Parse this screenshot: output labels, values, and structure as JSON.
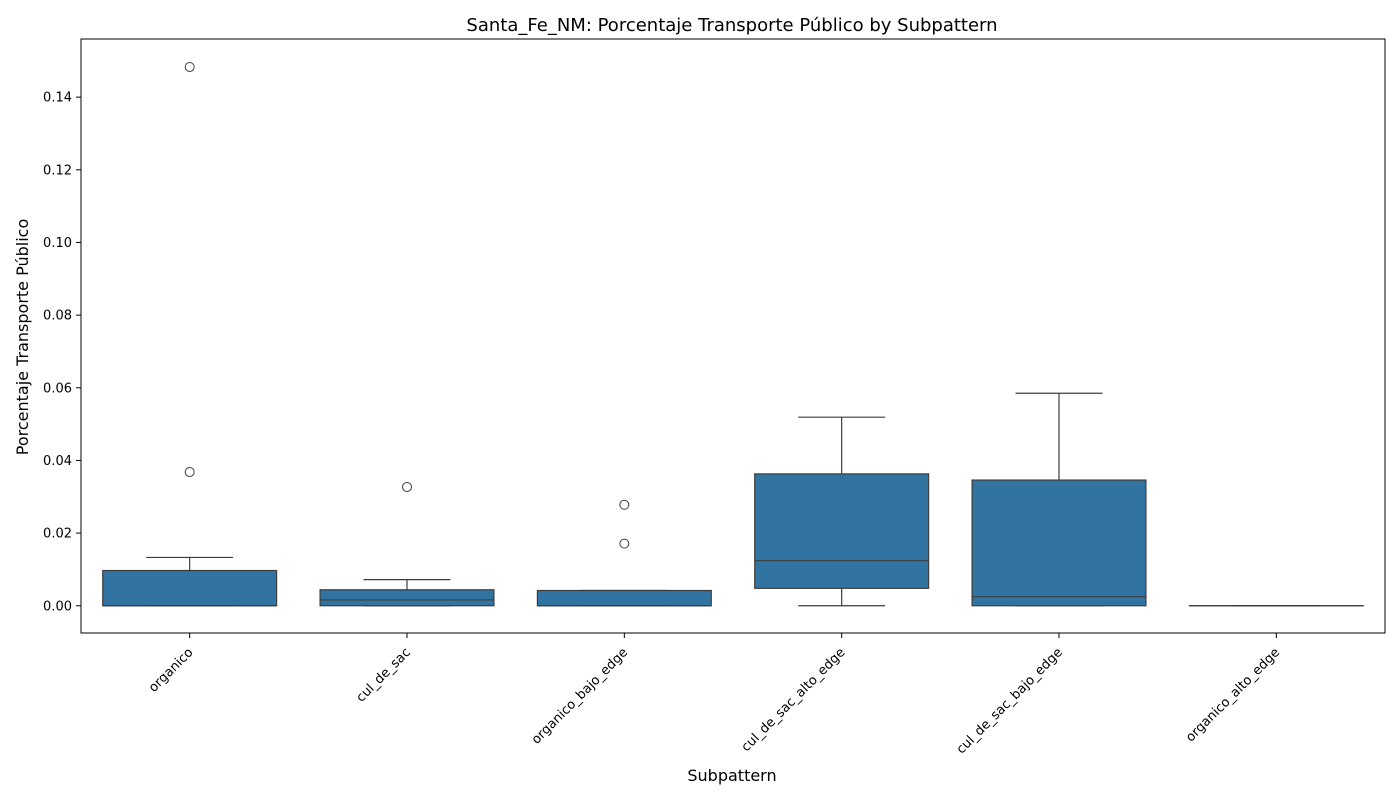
{
  "chart_data": {
    "type": "box",
    "title": "Santa_Fe_NM: Porcentaje Transporte Público by Subpattern",
    "xlabel": "Subpattern",
    "ylabel": "Porcentaje Transporte Público",
    "ylim": [
      -0.0075,
      0.156
    ],
    "yticks": [
      0.0,
      0.02,
      0.04,
      0.06,
      0.08,
      0.1,
      0.12,
      0.14
    ],
    "ytick_labels": [
      "0.00",
      "0.02",
      "0.04",
      "0.06",
      "0.08",
      "0.10",
      "0.12",
      "0.14"
    ],
    "grid": false,
    "box_color": "#3274a1",
    "line_color": "#3d3d3d",
    "categories": [
      "organico",
      "cul_de_sac",
      "organico_bajo_edge",
      "cul_de_sac_alto_edge",
      "cul_de_sac_bajo_edge",
      "organico_alto_edge"
    ],
    "boxes": [
      {
        "category": "organico",
        "whislo": 0.0,
        "q1": 0.0,
        "med": 0.0,
        "q3": 0.0097,
        "whishi": 0.0133,
        "fliers": [
          0.0368,
          0.1483
        ]
      },
      {
        "category": "cul_de_sac",
        "whislo": 0.0,
        "q1": 0.0,
        "med": 0.0016,
        "q3": 0.0044,
        "whishi": 0.0072,
        "fliers": [
          0.0327
        ]
      },
      {
        "category": "organico_bajo_edge",
        "whislo": 0.0,
        "q1": 0.0,
        "med": 0.0,
        "q3": 0.0042,
        "whishi": 0.0042,
        "fliers": [
          0.0171,
          0.0278
        ]
      },
      {
        "category": "cul_de_sac_alto_edge",
        "whislo": 0.0,
        "q1": 0.0048,
        "med": 0.0124,
        "q3": 0.0363,
        "whishi": 0.0519,
        "fliers": []
      },
      {
        "category": "cul_de_sac_bajo_edge",
        "whislo": 0.0,
        "q1": 0.0,
        "med": 0.0025,
        "q3": 0.0346,
        "whishi": 0.0585,
        "fliers": []
      },
      {
        "category": "organico_alto_edge",
        "whislo": 0.0,
        "q1": 0.0,
        "med": 0.0,
        "q3": 0.0,
        "whishi": 0.0,
        "fliers": []
      }
    ]
  }
}
